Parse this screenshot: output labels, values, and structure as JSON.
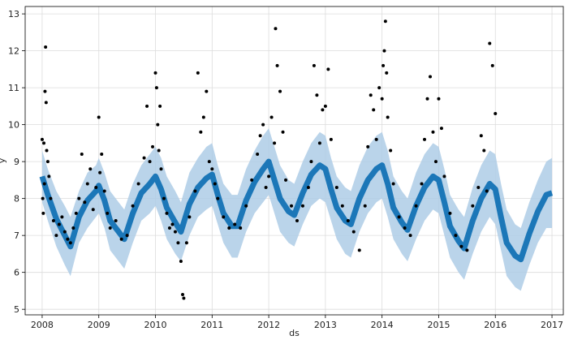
{
  "chart_data": {
    "type": "scatter",
    "title": "",
    "xlabel": "ds",
    "ylabel": "y",
    "xlim": [
      2007.7,
      2017.2
    ],
    "ylim": [
      4.85,
      13.2
    ],
    "grid": true,
    "x_ticks": [
      {
        "value": 2008,
        "label": "2008"
      },
      {
        "value": 2009,
        "label": "2009"
      },
      {
        "value": 2010,
        "label": "2010"
      },
      {
        "value": 2011,
        "label": "2011"
      },
      {
        "value": 2012,
        "label": "2012"
      },
      {
        "value": 2013,
        "label": "2013"
      },
      {
        "value": 2014,
        "label": "2014"
      },
      {
        "value": 2015,
        "label": "2015"
      },
      {
        "value": 2016,
        "label": "2016"
      },
      {
        "value": 2017,
        "label": "2017"
      }
    ],
    "y_ticks": [
      5,
      6,
      7,
      8,
      9,
      10,
      11,
      12,
      13
    ],
    "series": [
      {
        "kind": "forecast-band",
        "color": "#aecde6",
        "x": [
          2008.0,
          2008.1,
          2008.25,
          2008.4,
          2008.5,
          2008.65,
          2008.8,
          2008.95,
          2009.0,
          2009.1,
          2009.2,
          2009.35,
          2009.45,
          2009.6,
          2009.75,
          2009.9,
          2010.0,
          2010.1,
          2010.2,
          2010.35,
          2010.45,
          2010.6,
          2010.75,
          2010.9,
          2011.0,
          2011.1,
          2011.2,
          2011.35,
          2011.45,
          2011.6,
          2011.75,
          2011.9,
          2012.0,
          2012.1,
          2012.2,
          2012.35,
          2012.45,
          2012.6,
          2012.75,
          2012.9,
          2013.0,
          2013.1,
          2013.2,
          2013.35,
          2013.45,
          2013.6,
          2013.75,
          2013.9,
          2014.0,
          2014.1,
          2014.2,
          2014.35,
          2014.45,
          2014.6,
          2014.75,
          2014.9,
          2015.0,
          2015.1,
          2015.2,
          2015.35,
          2015.45,
          2015.6,
          2015.75,
          2015.9,
          2016.0,
          2016.1,
          2016.2,
          2016.35,
          2016.45,
          2016.6,
          2016.75,
          2016.9,
          2017.0
        ],
        "upper": [
          9.3,
          8.8,
          8.2,
          7.8,
          7.5,
          8.2,
          8.7,
          8.9,
          9.1,
          8.7,
          8.2,
          7.9,
          7.7,
          8.4,
          8.9,
          9.2,
          9.4,
          9.1,
          8.6,
          8.2,
          7.9,
          8.7,
          9.1,
          9.4,
          9.5,
          8.9,
          8.4,
          8.1,
          8.1,
          8.8,
          9.3,
          9.7,
          9.9,
          9.4,
          8.9,
          8.5,
          8.4,
          9.0,
          9.5,
          9.8,
          9.7,
          9.1,
          8.6,
          8.3,
          8.2,
          8.9,
          9.4,
          9.7,
          9.8,
          9.3,
          8.6,
          8.2,
          8.0,
          8.7,
          9.2,
          9.5,
          9.4,
          8.8,
          8.1,
          7.7,
          7.5,
          8.3,
          8.9,
          9.3,
          9.2,
          8.4,
          7.7,
          7.3,
          7.2,
          7.9,
          8.5,
          9.0,
          9.1
        ],
        "lower": [
          7.9,
          7.4,
          6.7,
          6.2,
          5.9,
          6.8,
          7.2,
          7.5,
          7.6,
          7.2,
          6.6,
          6.3,
          6.1,
          6.8,
          7.4,
          7.6,
          7.8,
          7.4,
          6.9,
          6.5,
          6.3,
          7.0,
          7.5,
          7.7,
          7.8,
          7.3,
          6.8,
          6.4,
          6.4,
          7.1,
          7.6,
          7.9,
          8.1,
          7.6,
          7.1,
          6.8,
          6.7,
          7.3,
          7.8,
          8.0,
          7.9,
          7.4,
          6.9,
          6.5,
          6.4,
          7.1,
          7.6,
          7.9,
          8.0,
          7.5,
          6.9,
          6.5,
          6.3,
          6.9,
          7.4,
          7.7,
          7.6,
          7.0,
          6.4,
          6.0,
          5.8,
          6.5,
          7.1,
          7.5,
          7.3,
          6.6,
          5.9,
          5.6,
          5.5,
          6.2,
          6.8,
          7.2,
          7.2
        ]
      },
      {
        "kind": "forecast-line",
        "color": "#0b6db3",
        "x": [
          2008.0,
          2008.1,
          2008.25,
          2008.4,
          2008.5,
          2008.65,
          2008.8,
          2008.95,
          2009.0,
          2009.1,
          2009.2,
          2009.35,
          2009.45,
          2009.6,
          2009.75,
          2009.9,
          2010.0,
          2010.1,
          2010.2,
          2010.35,
          2010.45,
          2010.6,
          2010.75,
          2010.9,
          2011.0,
          2011.1,
          2011.2,
          2011.35,
          2011.45,
          2011.6,
          2011.75,
          2011.9,
          2012.0,
          2012.1,
          2012.2,
          2012.35,
          2012.45,
          2012.6,
          2012.75,
          2012.9,
          2013.0,
          2013.1,
          2013.2,
          2013.35,
          2013.45,
          2013.6,
          2013.75,
          2013.9,
          2014.0,
          2014.1,
          2014.2,
          2014.35,
          2014.45,
          2014.6,
          2014.75,
          2014.9,
          2015.0,
          2015.1,
          2015.2,
          2015.35,
          2015.45,
          2015.6,
          2015.75,
          2015.9,
          2016.0,
          2016.1,
          2016.2,
          2016.35,
          2016.45,
          2016.6,
          2016.75,
          2016.9,
          2017.0
        ],
        "y": [
          8.6,
          8.1,
          7.45,
          7.0,
          6.7,
          7.5,
          7.95,
          8.2,
          8.35,
          7.95,
          7.4,
          7.1,
          6.9,
          7.6,
          8.15,
          8.4,
          8.6,
          8.25,
          7.75,
          7.35,
          7.1,
          7.85,
          8.3,
          8.55,
          8.65,
          8.1,
          7.6,
          7.25,
          7.25,
          7.95,
          8.45,
          8.8,
          9.0,
          8.5,
          8.0,
          7.65,
          7.55,
          8.15,
          8.65,
          8.9,
          8.8,
          8.25,
          7.75,
          7.4,
          7.3,
          8.0,
          8.5,
          8.8,
          8.9,
          8.4,
          7.75,
          7.35,
          7.15,
          7.8,
          8.3,
          8.6,
          8.5,
          7.9,
          7.25,
          6.85,
          6.65,
          7.4,
          8.0,
          8.4,
          8.25,
          7.5,
          6.8,
          6.45,
          6.35,
          7.05,
          7.65,
          8.1,
          8.15
        ]
      },
      {
        "kind": "observed-points",
        "color": "#000000",
        "x": [
          2008.0,
          2008.01,
          2008.02,
          2008.03,
          2008.04,
          2008.05,
          2008.06,
          2008.07,
          2008.08,
          2008.1,
          2008.12,
          2008.15,
          2008.2,
          2008.25,
          2008.3,
          2008.35,
          2008.4,
          2008.45,
          2008.5,
          2008.55,
          2008.6,
          2008.65,
          2008.7,
          2008.75,
          2008.8,
          2008.85,
          2008.9,
          2008.95,
          2009.0,
          2009.02,
          2009.05,
          2009.1,
          2009.15,
          2009.2,
          2009.3,
          2009.4,
          2009.5,
          2009.6,
          2009.7,
          2009.8,
          2009.85,
          2009.9,
          2009.95,
          2010.0,
          2010.02,
          2010.04,
          2010.06,
          2010.08,
          2010.1,
          2010.15,
          2010.2,
          2010.25,
          2010.3,
          2010.35,
          2010.4,
          2010.45,
          2010.48,
          2010.5,
          2010.55,
          2010.6,
          2010.7,
          2010.75,
          2010.8,
          2010.85,
          2010.9,
          2010.95,
          2011.0,
          2011.05,
          2011.1,
          2011.2,
          2011.3,
          2011.4,
          2011.5,
          2011.6,
          2011.7,
          2011.8,
          2011.85,
          2011.9,
          2011.95,
          2012.0,
          2012.05,
          2012.1,
          2012.12,
          2012.15,
          2012.2,
          2012.25,
          2012.3,
          2012.4,
          2012.5,
          2012.6,
          2012.7,
          2012.75,
          2012.8,
          2012.85,
          2012.9,
          2012.95,
          2013.0,
          2013.05,
          2013.1,
          2013.2,
          2013.3,
          2013.4,
          2013.5,
          2013.6,
          2013.7,
          2013.75,
          2013.8,
          2013.85,
          2013.9,
          2013.95,
          2014.0,
          2014.02,
          2014.04,
          2014.06,
          2014.08,
          2014.1,
          2014.15,
          2014.2,
          2014.3,
          2014.4,
          2014.5,
          2014.6,
          2014.7,
          2014.75,
          2014.8,
          2014.85,
          2014.9,
          2014.95,
          2015.0,
          2015.05,
          2015.1,
          2015.2,
          2015.3,
          2015.4,
          2015.5,
          2015.6,
          2015.7,
          2015.75,
          2015.8,
          2015.85,
          2015.9,
          2015.95,
          2016.0
        ],
        "y": [
          9.6,
          8.0,
          7.6,
          9.5,
          8.4,
          10.9,
          12.1,
          10.6,
          9.3,
          9.0,
          8.6,
          8.0,
          7.4,
          7.0,
          7.3,
          7.5,
          7.1,
          6.9,
          6.8,
          7.2,
          7.6,
          8.0,
          9.2,
          7.9,
          8.4,
          8.8,
          7.7,
          8.3,
          10.2,
          8.7,
          9.2,
          8.2,
          7.6,
          7.2,
          7.4,
          6.9,
          7.0,
          7.8,
          8.4,
          9.1,
          10.5,
          9.0,
          9.4,
          11.4,
          11.0,
          10.0,
          9.3,
          10.5,
          8.8,
          8.0,
          7.6,
          7.2,
          7.3,
          7.1,
          6.8,
          6.3,
          5.4,
          5.3,
          6.8,
          7.5,
          8.2,
          11.4,
          9.8,
          10.2,
          10.9,
          9.0,
          8.8,
          8.4,
          8.0,
          7.5,
          7.2,
          7.3,
          7.2,
          7.8,
          8.5,
          9.2,
          9.7,
          10.0,
          8.3,
          8.6,
          10.2,
          9.5,
          12.6,
          11.6,
          10.9,
          9.8,
          8.5,
          7.8,
          7.4,
          7.8,
          8.3,
          9.0,
          11.6,
          10.8,
          9.5,
          10.4,
          10.5,
          11.5,
          9.6,
          8.3,
          7.8,
          7.4,
          7.1,
          6.6,
          7.8,
          9.4,
          10.8,
          10.4,
          9.6,
          11.0,
          10.7,
          11.6,
          12.0,
          12.8,
          11.4,
          10.2,
          9.3,
          8.4,
          7.5,
          7.2,
          7.0,
          7.8,
          8.4,
          9.6,
          10.7,
          11.3,
          9.8,
          9.0,
          10.7,
          9.9,
          8.6,
          7.6,
          7.0,
          6.7,
          6.6,
          7.8,
          8.3,
          9.7,
          9.3,
          8.2,
          12.2,
          11.6,
          10.3
        ]
      }
    ]
  }
}
